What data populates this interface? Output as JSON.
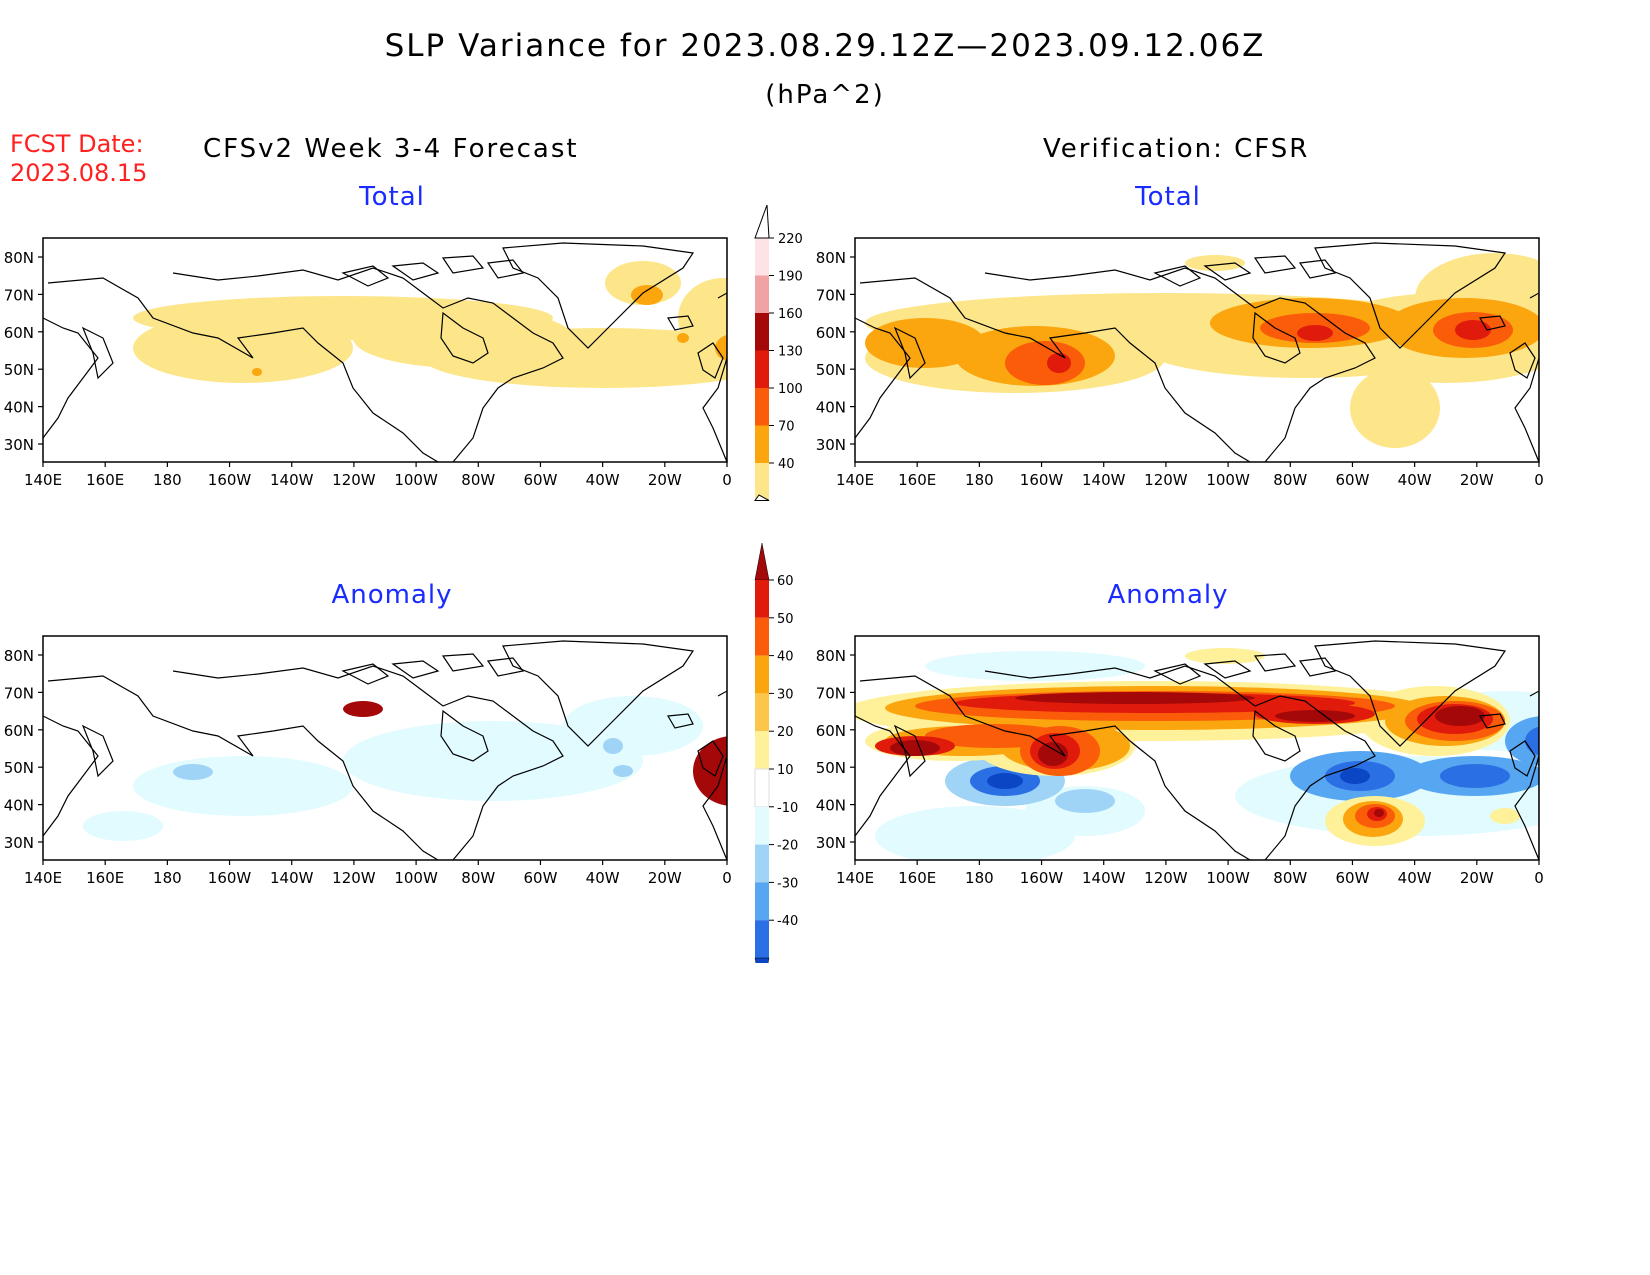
{
  "title": "SLP Variance for 2023.08.29.12Z—2023.09.12.06Z",
  "units": "(hPa^2)",
  "fcst_label": "FCST Date:",
  "fcst_date": "2023.08.15",
  "left_header": "CFSv2 Week 3-4 Forecast",
  "right_header": "Verification: CFSR",
  "panels": {
    "fcst_total": "Total",
    "fcst_anom": "Anomaly",
    "ver_total": "Total",
    "ver_anom": "Anomaly"
  },
  "lat_labels": [
    "80N",
    "70N",
    "60N",
    "50N",
    "40N",
    "30N"
  ],
  "lon_labels": [
    "140E",
    "160E",
    "180",
    "160W",
    "140W",
    "120W",
    "100W",
    "80W",
    "60W",
    "40W",
    "20W",
    "0"
  ],
  "total_colorbar": {
    "levels": [
      "40",
      "70",
      "100",
      "130",
      "160",
      "190",
      "220"
    ],
    "colors": [
      "#fde68a",
      "#fba50f",
      "#fa5c0a",
      "#e01b0b",
      "#a50808",
      "#f1a3a3",
      "#fde3e6"
    ]
  },
  "anomaly_colorbar": {
    "levels": [
      "60",
      "50",
      "40",
      "30",
      "20",
      "10",
      "-10",
      "-20",
      "-30",
      "-40"
    ],
    "colors_warm": [
      "#a50808",
      "#e01b0b",
      "#fa5c0a",
      "#fba50f",
      "#fcc64a",
      "#fef19a"
    ],
    "colors_cool": [
      "#e2fbff",
      "#9fd4f7",
      "#56a6f1",
      "#2b6fe4",
      "#0b46c5"
    ]
  }
}
